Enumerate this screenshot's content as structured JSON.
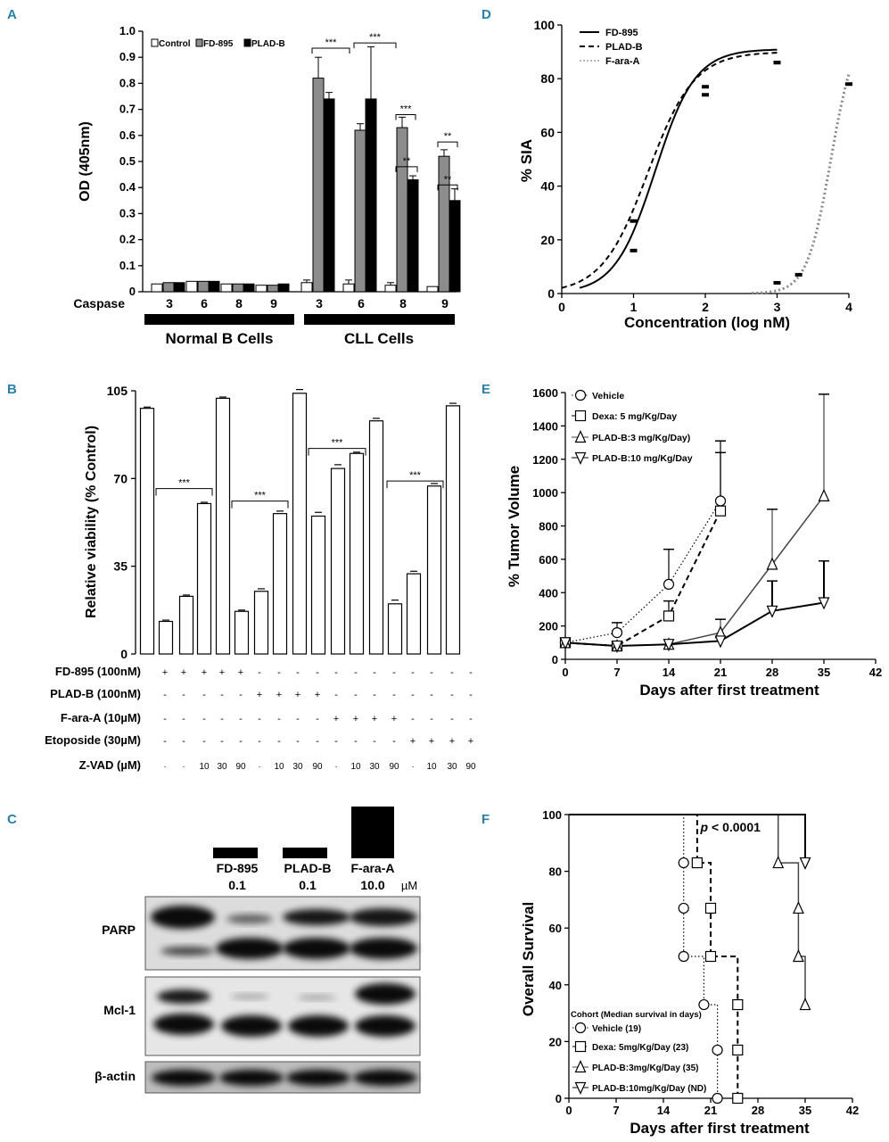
{
  "panel_letters": {
    "A": "A",
    "B": "B",
    "C": "C",
    "D": "D",
    "E": "E",
    "F": "F"
  },
  "chart_data": [
    {
      "id": "A",
      "type": "bar",
      "ylabel": "OD (405nm)",
      "ylim": [
        0,
        1.0
      ],
      "yticks": [
        "0",
        "0.1",
        "0.2",
        "0.3",
        "0.4",
        "0.5",
        "0.6",
        "0.7",
        "0.8",
        "0.9",
        "1.0"
      ],
      "x_row_label": "Caspase",
      "categories": [
        "3",
        "6",
        "8",
        "9",
        "3",
        "6",
        "8",
        "9"
      ],
      "groups": [
        "Normal B Cells",
        "CLL Cells"
      ],
      "series": [
        {
          "name": "Control",
          "color": "#ffffff",
          "values": [
            0.03,
            0.04,
            0.03,
            0.025,
            0.035,
            0.03,
            0.025,
            0.02
          ],
          "errors": [
            0.005,
            0.005,
            0.005,
            0.005,
            0.01,
            0.015,
            0.01,
            0.005
          ]
        },
        {
          "name": "FD-895",
          "color": "#8c8c8c",
          "values": [
            0.035,
            0.04,
            0.03,
            0.025,
            0.82,
            0.62,
            0.63,
            0.52
          ],
          "errors": [
            0.005,
            0.005,
            0.005,
            0.005,
            0.08,
            0.025,
            0.04,
            0.025
          ]
        },
        {
          "name": "PLAD-B",
          "color": "#000000",
          "values": [
            0.035,
            0.04,
            0.03,
            0.03,
            0.74,
            0.74,
            0.43,
            0.35
          ],
          "errors": [
            0.005,
            0.005,
            0.005,
            0.005,
            0.025,
            0.2,
            0.015,
            0.045
          ]
        }
      ],
      "annotations": [
        "***",
        "***",
        "***",
        "**",
        "**",
        "**"
      ]
    },
    {
      "id": "B",
      "type": "bar",
      "ylabel": "Relative viability (% Control)",
      "ylim": [
        0,
        105
      ],
      "yticks": [
        "0",
        "35",
        "70",
        "105"
      ],
      "values": [
        98,
        13,
        23,
        60,
        102,
        17,
        25,
        56,
        104,
        55,
        74,
        80,
        93,
        20,
        32,
        67,
        99
      ],
      "errors": [
        0.5,
        0.5,
        0.5,
        0.5,
        0.5,
        0.5,
        1,
        1,
        1.5,
        1.5,
        1.5,
        0.5,
        1,
        1.5,
        1,
        1,
        1
      ],
      "condition_labels": [
        "FD-895 (100nM)",
        "PLAD-B (100nM)",
        "F-ara-A (10µM)",
        "Etoposide (30µM)",
        "Z-VAD (µM)"
      ],
      "condition_rows": [
        [
          "+",
          "+",
          "+",
          "+",
          "+",
          "-",
          "-",
          "-",
          "-",
          "-",
          "-",
          "-",
          "-",
          "-",
          "-",
          "-",
          "-"
        ],
        [
          "-",
          "-",
          "-",
          "-",
          "-",
          "+",
          "+",
          "+",
          "+",
          "-",
          "-",
          "-",
          "-",
          "-",
          "-",
          "-",
          "-"
        ],
        [
          "-",
          "-",
          "-",
          "-",
          "-",
          "-",
          "-",
          "-",
          "-",
          "+",
          "+",
          "+",
          "+",
          "-",
          "-",
          "-",
          "-"
        ],
        [
          "-",
          "-",
          "-",
          "-",
          "-",
          "-",
          "-",
          "-",
          "-",
          "-",
          "-",
          "-",
          "-",
          "+",
          "+",
          "+",
          "+"
        ],
        [
          "-",
          "-",
          "10",
          "30",
          "90",
          "-",
          "10",
          "30",
          "90",
          "-",
          "10",
          "30",
          "90",
          "-",
          "10",
          "30",
          "90"
        ]
      ],
      "annotations": [
        "***",
        "***",
        "***",
        "***"
      ]
    },
    {
      "id": "C",
      "type": "table",
      "treatments": [
        {
          "name": "FD-895",
          "conc": "0.1"
        },
        {
          "name": "PLAD-B",
          "conc": "0.1"
        },
        {
          "name": "F-ara-A",
          "conc": "10.0"
        }
      ],
      "unit": "µM",
      "rows": [
        "PARP",
        "Mcl-1",
        "β-actin"
      ]
    },
    {
      "id": "D",
      "type": "line",
      "ylabel": "% SIA",
      "xlabel": "Concentration (log nM)",
      "xlim": [
        0,
        4
      ],
      "ylim": [
        0,
        100
      ],
      "xticks": [
        "0",
        "1",
        "2",
        "3",
        "4"
      ],
      "yticks": [
        "0",
        "20",
        "40",
        "60",
        "80",
        "100"
      ],
      "series": [
        {
          "name": "FD-895",
          "style": "solid",
          "x": [
            1.0,
            2.0,
            3.0
          ],
          "y": [
            16,
            77,
            86
          ],
          "ec50": 1.3
        },
        {
          "name": "PLAD-B",
          "style": "dashed",
          "x": [
            1.0,
            2.0,
            3.0
          ],
          "y": [
            27,
            74,
            86
          ],
          "ec50": 1.2
        },
        {
          "name": "F-ara-A",
          "style": "dotted",
          "x": [
            3.0,
            3.3,
            4.0
          ],
          "y": [
            4,
            7,
            78
          ],
          "ec50": 3.75
        }
      ]
    },
    {
      "id": "E",
      "type": "line",
      "ylabel": "% Tumor Volume",
      "xlabel": "Days after first treatment",
      "xlim": [
        0,
        42
      ],
      "ylim": [
        0,
        1600
      ],
      "xticks": [
        "0",
        "7",
        "14",
        "21",
        "28",
        "35",
        "42"
      ],
      "yticks": [
        "0",
        "200",
        "400",
        "600",
        "800",
        "1000",
        "1200",
        "1400",
        "1600"
      ],
      "series": [
        {
          "name": "Vehicle",
          "marker": "circle",
          "style": "dotted",
          "x": [
            0,
            7,
            14,
            21
          ],
          "y": [
            100,
            160,
            450,
            950
          ],
          "errors": [
            0,
            60,
            210,
            360
          ]
        },
        {
          "name": "Dexa: 5 mg/Kg/Day",
          "marker": "square",
          "style": "dashed",
          "x": [
            0,
            7,
            14,
            21
          ],
          "y": [
            100,
            80,
            260,
            890
          ],
          "errors": [
            0,
            0,
            90,
            350
          ]
        },
        {
          "name": "PLAD-B:3 mg/Kg/Day)",
          "marker": "triangle-up",
          "style": "solid-gray",
          "x": [
            0,
            7,
            14,
            21,
            28,
            35
          ],
          "y": [
            100,
            80,
            90,
            160,
            570,
            980
          ],
          "errors": [
            0,
            0,
            0,
            80,
            330,
            610
          ]
        },
        {
          "name": "PLAD-B:10 mg/Kg/Day",
          "marker": "triangle-down",
          "style": "solid-dark",
          "x": [
            0,
            7,
            14,
            21,
            28,
            35
          ],
          "y": [
            100,
            80,
            90,
            110,
            290,
            340
          ],
          "errors": [
            0,
            0,
            0,
            0,
            180,
            250
          ]
        }
      ]
    },
    {
      "id": "F",
      "type": "line",
      "ylabel": "Overall Survival",
      "xlabel": "Days after first treatment",
      "xlim": [
        0,
        42
      ],
      "ylim": [
        0,
        100
      ],
      "xticks": [
        "0",
        "7",
        "14",
        "21",
        "28",
        "35",
        "42"
      ],
      "yticks": [
        "0",
        "20",
        "40",
        "60",
        "80",
        "100"
      ],
      "pvalue_text": "< 0.0001",
      "legend_title": "Cohort (Median survival in days)",
      "series": [
        {
          "name": "Vehicle (19)",
          "marker": "circle",
          "style": "dotted",
          "steps": [
            [
              0,
              100
            ],
            [
              17,
              100
            ],
            [
              17,
              83
            ],
            [
              17,
              67
            ],
            [
              17,
              50
            ],
            [
              20,
              50
            ],
            [
              20,
              33
            ],
            [
              22,
              33
            ],
            [
              22,
              17
            ],
            [
              22,
              0
            ]
          ],
          "markers": [
            [
              17,
              83
            ],
            [
              17,
              67
            ],
            [
              17,
              50
            ],
            [
              20,
              33
            ],
            [
              22,
              17
            ],
            [
              22,
              0
            ]
          ]
        },
        {
          "name": "Dexa: 5mg/Kg/Day (23)",
          "marker": "square",
          "style": "dashed",
          "steps": [
            [
              0,
              100
            ],
            [
              19,
              100
            ],
            [
              19,
              83
            ],
            [
              21,
              83
            ],
            [
              21,
              67
            ],
            [
              21,
              50
            ],
            [
              25,
              50
            ],
            [
              25,
              33
            ],
            [
              25,
              17
            ],
            [
              25,
              0
            ]
          ],
          "markers": [
            [
              19,
              83
            ],
            [
              21,
              67
            ],
            [
              21,
              50
            ],
            [
              25,
              33
            ],
            [
              25,
              17
            ],
            [
              25,
              0
            ]
          ]
        },
        {
          "name": "PLAD-B:3mg/Kg/Day (35)",
          "marker": "triangle-up",
          "style": "solid-gray",
          "steps": [
            [
              0,
              100
            ],
            [
              31,
              100
            ],
            [
              31,
              83
            ],
            [
              34,
              83
            ],
            [
              34,
              67
            ],
            [
              34,
              50
            ],
            [
              35,
              50
            ],
            [
              35,
              33
            ]
          ],
          "markers": [
            [
              31,
              83
            ],
            [
              34,
              67
            ],
            [
              34,
              50
            ],
            [
              35,
              33
            ]
          ]
        },
        {
          "name": "PLAD-B:10mg/Kg/Day (ND)",
          "marker": "triangle-down",
          "style": "solid-dark",
          "steps": [
            [
              0,
              100
            ],
            [
              35,
              100
            ],
            [
              35,
              83
            ]
          ],
          "markers": [
            [
              35,
              83
            ]
          ]
        }
      ]
    }
  ]
}
